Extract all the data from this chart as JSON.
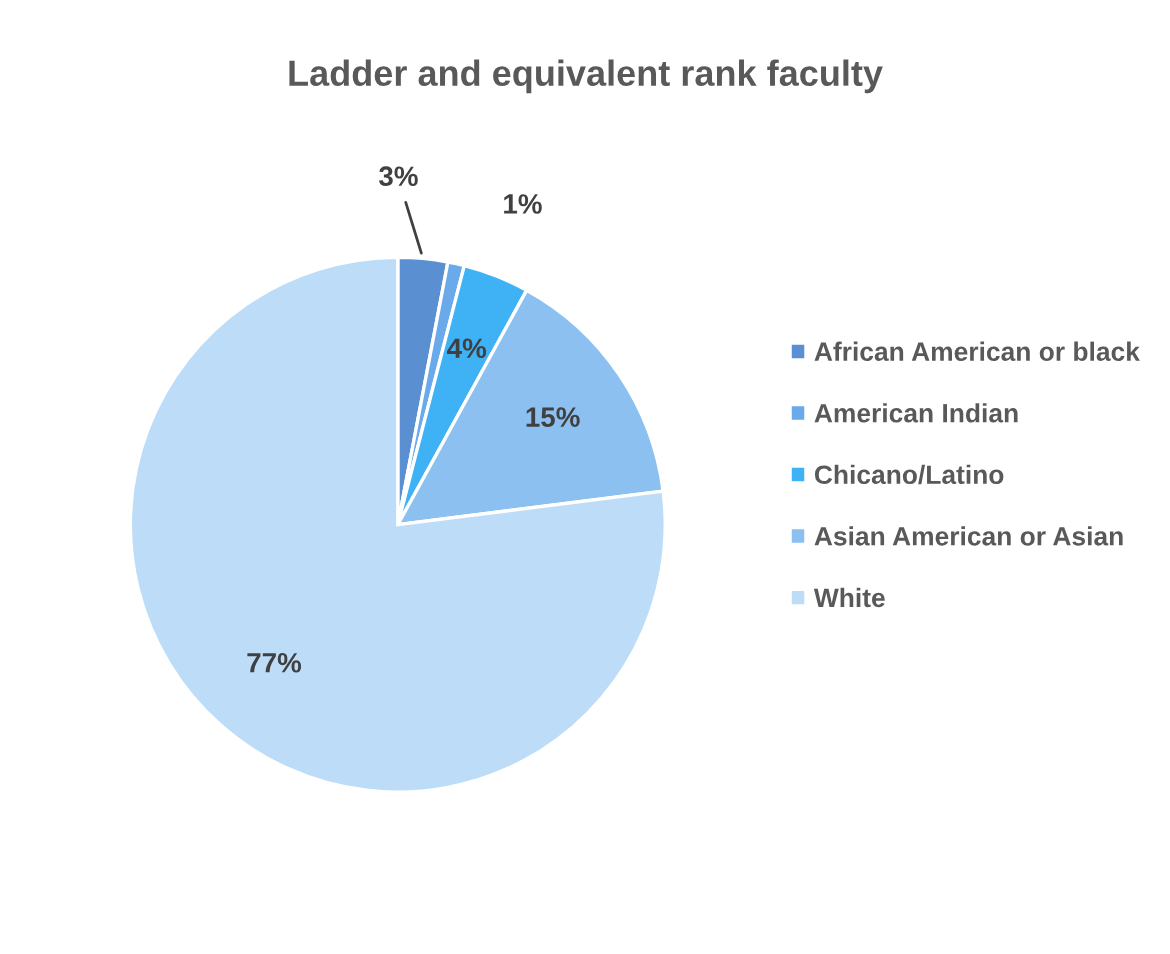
{
  "chart_data": {
    "type": "pie",
    "title": "Ladder and equivalent rank faculty",
    "categories": [
      "African American or black",
      "American Indian",
      "Chicano/Latino",
      "Asian American or Asian",
      "White"
    ],
    "values": [
      3,
      1,
      4,
      15,
      77
    ],
    "colors": [
      "#5a8fd2",
      "#6aaaea",
      "#3fb2f6",
      "#8cc0f0",
      "#bddcf8"
    ],
    "value_labels": [
      "3%",
      "1%",
      "4%",
      "15%",
      "77%"
    ],
    "legend": "right"
  }
}
